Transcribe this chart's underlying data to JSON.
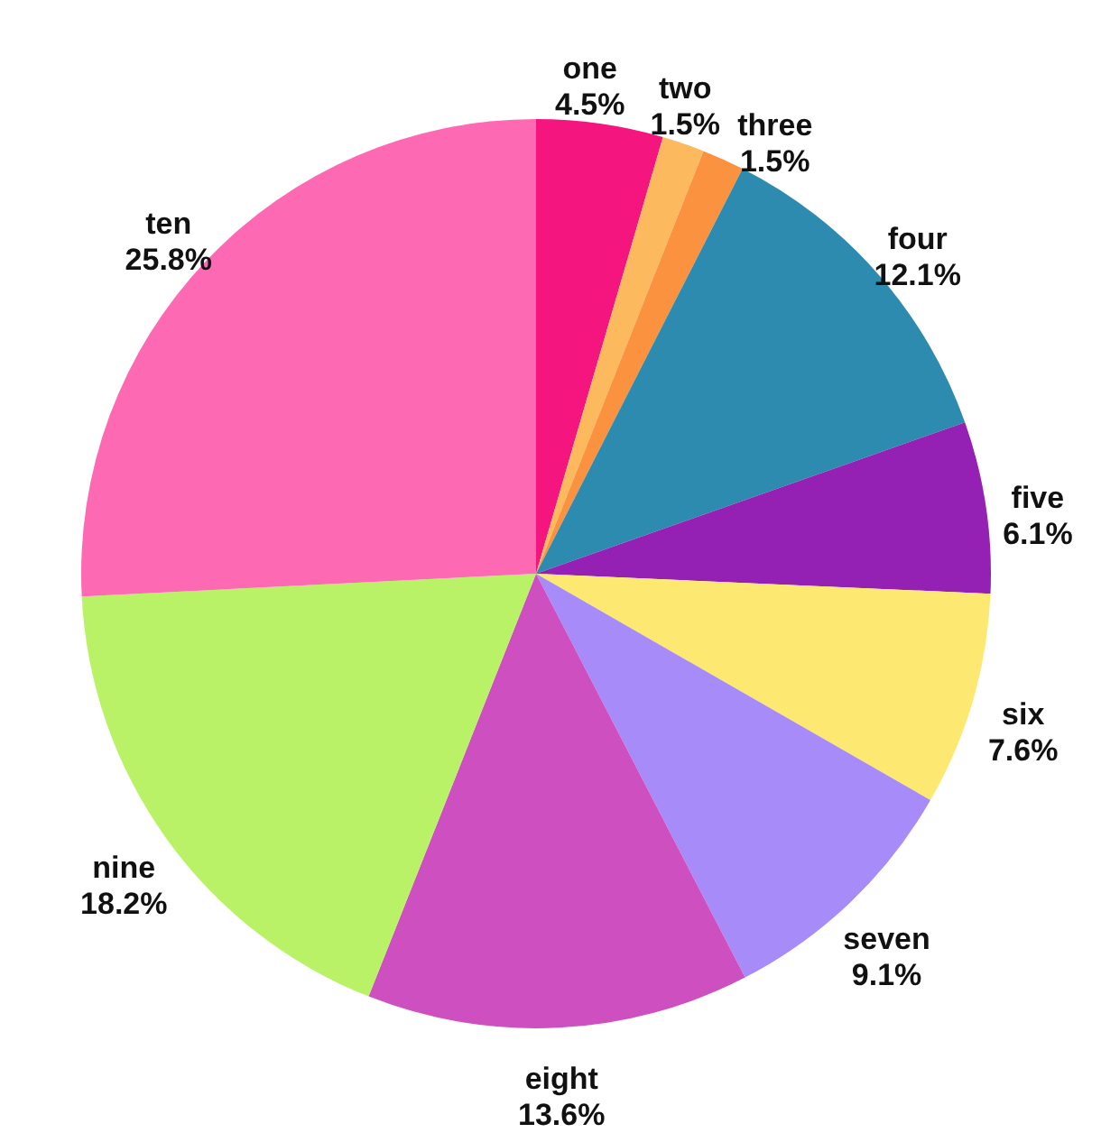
{
  "chart_data": {
    "type": "pie",
    "categories": [
      "one",
      "two",
      "three",
      "four",
      "five",
      "six",
      "seven",
      "eight",
      "nine",
      "ten"
    ],
    "values": [
      4.5,
      1.5,
      1.5,
      12.1,
      6.1,
      7.6,
      9.1,
      13.6,
      18.2,
      25.8
    ],
    "colors": [
      "#f5157f",
      "#fdb95e",
      "#fb9240",
      "#2e8bb0",
      "#9421b4",
      "#fde872",
      "#a78bf8",
      "#cd4fc0",
      "#b9f266",
      "#fd69b3"
    ],
    "value_labels": [
      "4.5%",
      "1.5%",
      "1.5%",
      "12.1%",
      "6.1%",
      "7.6%",
      "9.1%",
      "13.6%",
      "18.2%",
      "25.8%"
    ]
  }
}
